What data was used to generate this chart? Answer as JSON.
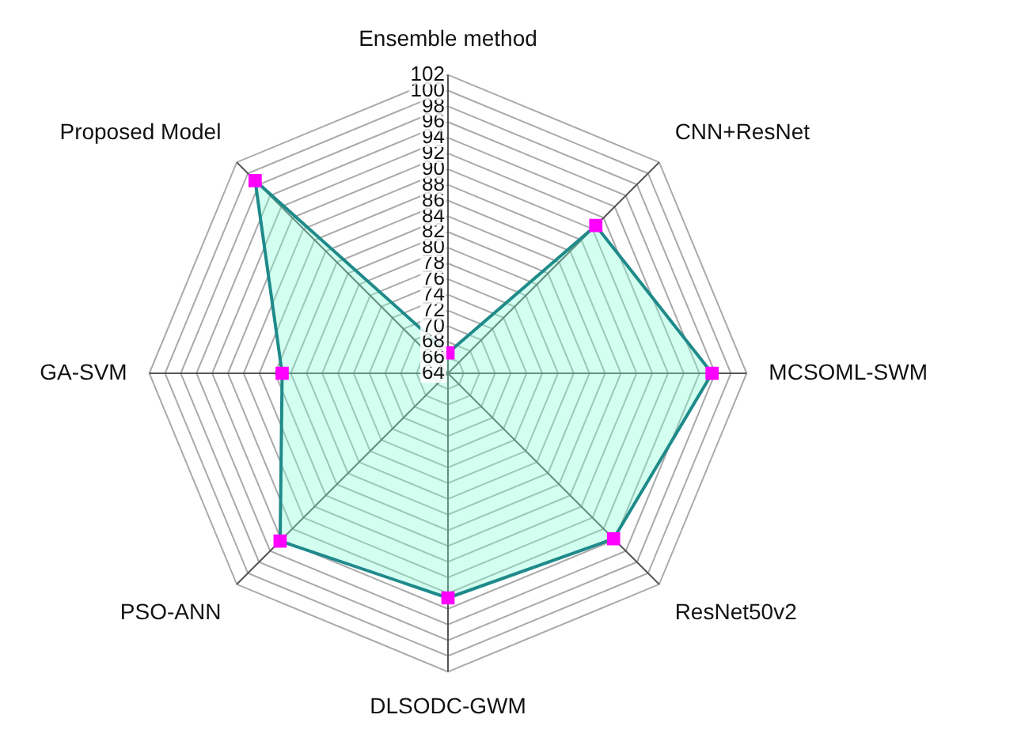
{
  "chart_data": {
    "type": "radar",
    "categories": [
      "Ensemble method",
      "CNN+ResNet",
      "MCSOML-SWM",
      "ResNet50v2",
      "DLSODC-GWM",
      "PSO-ANN",
      "GA-SVM",
      "Proposed Model"
    ],
    "series": [
      {
        "color": "#1f8a8a",
        "colors": [
          "#ff00ff",
          "#ff00ff",
          "#ff00ff",
          "#ff00ff",
          "#ff00ff",
          "#ff00ff",
          "#ff00ff",
          "#ff00ff"
        ],
        "values": [
          66.6,
          90.6,
          97.6,
          93.8,
          92.6,
          94.2,
          85.1,
          98.7
        ]
      }
    ],
    "ylim": [
      64,
      102
    ],
    "yticks": [
      64,
      66,
      68,
      70,
      72,
      74,
      76,
      78,
      80,
      82,
      84,
      86,
      88,
      90,
      92,
      94,
      96,
      98,
      100,
      102
    ],
    "marker": "square",
    "line_style": "solid",
    "legend": false,
    "grid": true
  }
}
